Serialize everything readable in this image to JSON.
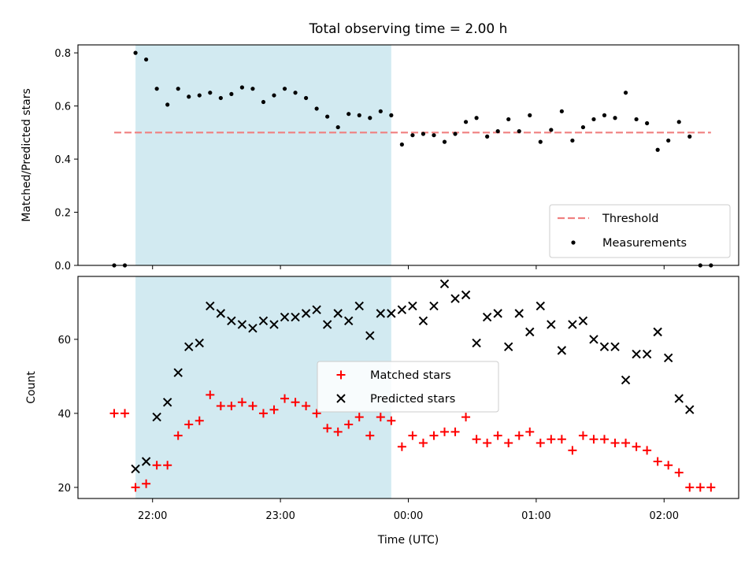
{
  "chart_data": [
    {
      "type": "scatter",
      "title": "Total observing time = 2.00 h",
      "ylabel": "Matched/Predicted stars",
      "xlabel": "",
      "xlim": [
        "21:25",
        "02:35"
      ],
      "ylim": [
        0,
        0.83
      ],
      "yticks": [
        0.0,
        0.2,
        0.4,
        0.6,
        0.8
      ],
      "ytick_labels": [
        "0.0",
        "0.2",
        "0.4",
        "0.6",
        "0.8"
      ],
      "xticks": [
        "22:00",
        "23:00",
        "00:00",
        "01:00",
        "02:00"
      ],
      "shaded_span": {
        "start": "21:52",
        "end": "23:52",
        "color": "#add8e6"
      },
      "threshold": {
        "name": "Threshold",
        "value": 0.5,
        "color": "#f08080",
        "style": "dashed",
        "from": "21:42",
        "to": "02:22"
      },
      "legend": {
        "position": "lower-right",
        "entries": [
          "Threshold",
          "Measurements"
        ]
      },
      "series": [
        {
          "name": "Measurements",
          "color": "#000000",
          "marker": "dot",
          "x": [
            "21:42",
            "21:47",
            "21:52",
            "21:57",
            "22:02",
            "22:07",
            "22:12",
            "22:17",
            "22:22",
            "22:27",
            "22:32",
            "22:37",
            "22:42",
            "22:47",
            "22:52",
            "22:57",
            "23:02",
            "23:07",
            "23:12",
            "23:17",
            "23:22",
            "23:27",
            "23:32",
            "23:37",
            "23:42",
            "23:47",
            "23:52",
            "23:57",
            "00:02",
            "00:07",
            "00:12",
            "00:17",
            "00:22",
            "00:27",
            "00:32",
            "00:37",
            "00:42",
            "00:47",
            "00:52",
            "00:57",
            "01:02",
            "01:07",
            "01:12",
            "01:17",
            "01:22",
            "01:27",
            "01:32",
            "01:37",
            "01:42",
            "01:47",
            "01:52",
            "01:57",
            "02:02",
            "02:07",
            "02:12",
            "02:17",
            "02:22"
          ],
          "values": [
            0.0,
            0.0,
            0.8,
            0.775,
            0.665,
            0.605,
            0.665,
            0.635,
            0.64,
            0.65,
            0.63,
            0.645,
            0.67,
            0.665,
            0.615,
            0.64,
            0.665,
            0.65,
            0.63,
            0.59,
            0.56,
            0.52,
            0.57,
            0.565,
            0.555,
            0.58,
            0.565,
            0.455,
            0.49,
            0.495,
            0.49,
            0.465,
            0.495,
            0.54,
            0.555,
            0.485,
            0.505,
            0.55,
            0.505,
            0.565,
            0.465,
            0.51,
            0.58,
            0.47,
            0.52,
            0.55,
            0.565,
            0.555,
            0.65,
            0.55,
            0.535,
            0.435,
            0.47,
            0.54,
            0.485,
            0.0,
            0.0
          ]
        }
      ]
    },
    {
      "type": "scatter",
      "title": "",
      "ylabel": "Count",
      "xlabel": "Time (UTC)",
      "xlim": [
        "21:25",
        "02:35"
      ],
      "ylim": [
        17,
        77
      ],
      "yticks": [
        20,
        40,
        60
      ],
      "ytick_labels": [
        "20",
        "40",
        "60"
      ],
      "xticks": [
        "22:00",
        "23:00",
        "00:00",
        "01:00",
        "02:00"
      ],
      "shaded_span": {
        "start": "21:52",
        "end": "23:52",
        "color": "#add8e6"
      },
      "legend": {
        "position": "center",
        "entries": [
          "Matched stars",
          "Predicted stars"
        ]
      },
      "series": [
        {
          "name": "Matched stars",
          "color": "#ff0000",
          "marker": "plus",
          "x": [
            "21:42",
            "21:47",
            "21:52",
            "21:57",
            "22:02",
            "22:07",
            "22:12",
            "22:17",
            "22:22",
            "22:27",
            "22:32",
            "22:37",
            "22:42",
            "22:47",
            "22:52",
            "22:57",
            "23:02",
            "23:07",
            "23:12",
            "23:17",
            "23:22",
            "23:27",
            "23:32",
            "23:37",
            "23:42",
            "23:47",
            "23:52",
            "23:57",
            "00:02",
            "00:07",
            "00:12",
            "00:17",
            "00:22",
            "00:27",
            "00:32",
            "00:37",
            "00:42",
            "00:47",
            "00:52",
            "00:57",
            "01:02",
            "01:07",
            "01:12",
            "01:17",
            "01:22",
            "01:27",
            "01:32",
            "01:37",
            "01:42",
            "01:47",
            "01:52",
            "01:57",
            "02:02",
            "02:07",
            "02:12",
            "02:17",
            "02:22"
          ],
          "values": [
            40,
            40,
            20,
            21,
            26,
            26,
            34,
            37,
            38,
            45,
            42,
            42,
            43,
            42,
            40,
            41,
            44,
            43,
            42,
            40,
            36,
            35,
            37,
            39,
            34,
            39,
            38,
            31,
            34,
            32,
            34,
            35,
            35,
            39,
            33,
            32,
            34,
            32,
            34,
            35,
            32,
            33,
            33,
            30,
            34,
            33,
            33,
            32,
            32,
            31,
            30,
            27,
            26,
            24,
            20,
            20,
            20
          ]
        },
        {
          "name": "Predicted stars",
          "color": "#000000",
          "marker": "x",
          "x": [
            "21:52",
            "21:57",
            "22:02",
            "22:07",
            "22:12",
            "22:17",
            "22:22",
            "22:27",
            "22:32",
            "22:37",
            "22:42",
            "22:47",
            "22:52",
            "22:57",
            "23:02",
            "23:07",
            "23:12",
            "23:17",
            "23:22",
            "23:27",
            "23:32",
            "23:37",
            "23:42",
            "23:47",
            "23:52",
            "23:57",
            "00:02",
            "00:07",
            "00:12",
            "00:17",
            "00:22",
            "00:27",
            "00:32",
            "00:37",
            "00:42",
            "00:47",
            "00:52",
            "00:57",
            "01:02",
            "01:07",
            "01:12",
            "01:17",
            "01:22",
            "01:27",
            "01:32",
            "01:37",
            "01:42",
            "01:47",
            "01:52",
            "01:57",
            "02:02",
            "02:07",
            "02:12"
          ],
          "values": [
            25,
            27,
            39,
            43,
            51,
            58,
            59,
            69,
            67,
            65,
            64,
            63,
            65,
            64,
            66,
            66,
            67,
            68,
            64,
            67,
            65,
            69,
            61,
            67,
            67,
            68,
            69,
            65,
            69,
            75,
            71,
            72,
            59,
            66,
            67,
            58,
            67,
            62,
            69,
            64,
            57,
            64,
            65,
            60,
            58,
            58,
            49,
            56,
            56,
            62,
            55,
            44,
            41
          ]
        }
      ]
    }
  ]
}
